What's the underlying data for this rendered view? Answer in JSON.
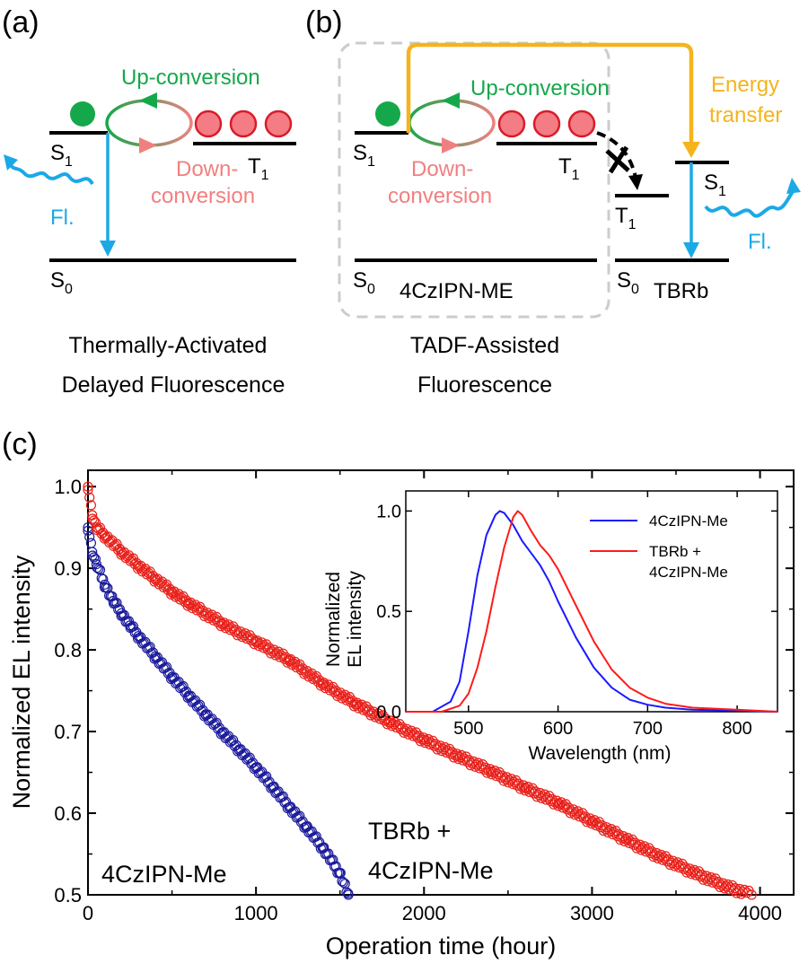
{
  "panels": {
    "a": {
      "letter": "(a)",
      "up_conversion": "Up-conversion",
      "down_line1": "Down-",
      "down_line2": "conversion",
      "fl": "Fl.",
      "caption_line1": "Thermally-Activated",
      "caption_line2": "Delayed Fluorescence"
    },
    "b": {
      "letter": "(b)",
      "up_conversion": "Up-conversion",
      "down_line1": "Down-",
      "down_line2": "conversion",
      "energy_line1": "Energy",
      "energy_line2": "transfer",
      "fl": "Fl.",
      "host_name": "4CzIPN-ME",
      "dopant_name": "TBRb",
      "caption_line1": "TADF-Assisted",
      "caption_line2": "Fluorescence"
    },
    "c": {
      "letter": "(c)"
    }
  },
  "levels": {
    "s": "S",
    "t": "T",
    "sub0": "0",
    "sub1": "1"
  },
  "colors": {
    "green": "#15a84a",
    "salmon": "#f08080",
    "triplet_fill": "#f47c84",
    "triplet_stroke": "#d91c2a",
    "blue_arrow": "#1ba9e6",
    "orange": "#f5b31c",
    "series_4czipn": "#1c1c9c",
    "series_tbrb": "#e8201a",
    "inset_blue": "#1a1aff",
    "inset_red": "#ff1a1a",
    "dashed_box": "#cccccc"
  },
  "chart_data": [
    {
      "type": "scatter",
      "xlabel": "Operation time (hour)",
      "ylabel": "Normalized EL intensity",
      "xlim": [
        0,
        4200
      ],
      "ylim": [
        0.5,
        1.02
      ],
      "xticks": [
        0,
        1000,
        2000,
        3000,
        4000
      ],
      "yticks": [
        0.5,
        0.6,
        0.7,
        0.8,
        0.9,
        1.0
      ],
      "xtick_labels": [
        "0",
        "1000",
        "2000",
        "3000",
        "4000"
      ],
      "ytick_labels": [
        "0.5",
        "0.6",
        "0.7",
        "0.8",
        "0.9",
        "1.0"
      ],
      "series": [
        {
          "name": "4CzIPN-Me",
          "color": "#1c1c9c",
          "x": [
            0,
            25,
            50,
            100,
            150,
            200,
            250,
            300,
            400,
            500,
            600,
            700,
            800,
            900,
            1000,
            1100,
            1200,
            1300,
            1400,
            1500,
            1550
          ],
          "y": [
            0.95,
            0.92,
            0.905,
            0.88,
            0.86,
            0.845,
            0.83,
            0.817,
            0.792,
            0.767,
            0.744,
            0.721,
            0.699,
            0.678,
            0.656,
            0.632,
            0.607,
            0.583,
            0.557,
            0.526,
            0.5
          ]
        },
        {
          "name": "TBRb + 4CzIPN-Me",
          "color": "#e8201a",
          "x": [
            0,
            25,
            50,
            100,
            200,
            300,
            400,
            500,
            600,
            800,
            1000,
            1200,
            1400,
            1600,
            1800,
            2000,
            2200,
            2400,
            2600,
            2800,
            3000,
            3200,
            3400,
            3600,
            3800,
            3950
          ],
          "y": [
            1.0,
            0.965,
            0.95,
            0.94,
            0.92,
            0.903,
            0.887,
            0.871,
            0.857,
            0.832,
            0.81,
            0.787,
            0.758,
            0.733,
            0.711,
            0.69,
            0.67,
            0.651,
            0.631,
            0.612,
            0.59,
            0.568,
            0.547,
            0.528,
            0.51,
            0.5
          ]
        }
      ],
      "annotations": [
        {
          "text": "4CzIPN-Me"
        },
        {
          "text_line1": "TBRb +",
          "text_line2": "4CzIPN-Me"
        }
      ]
    },
    {
      "type": "line",
      "xlabel": "Wavelength (nm)",
      "ylabel_line1": "Normalized",
      "ylabel_line2": "EL intensity",
      "xlim": [
        430,
        845
      ],
      "ylim": [
        0,
        1.1
      ],
      "xticks": [
        500,
        600,
        700,
        800
      ],
      "yticks": [
        0.0,
        0.5,
        1.0
      ],
      "xtick_labels": [
        "500",
        "600",
        "700",
        "800"
      ],
      "ytick_labels": [
        "0.0",
        "0.5",
        "1.0"
      ],
      "legend_position": "top-right",
      "series": [
        {
          "name": "4CzIPN-Me",
          "color": "#1a1aff",
          "x": [
            430,
            460,
            480,
            490,
            500,
            510,
            520,
            530,
            535,
            540,
            550,
            560,
            570,
            580,
            590,
            600,
            620,
            640,
            660,
            680,
            700,
            720,
            750,
            800,
            845
          ],
          "y": [
            0.0,
            0.0,
            0.05,
            0.15,
            0.4,
            0.68,
            0.88,
            0.98,
            1.0,
            0.99,
            0.93,
            0.85,
            0.79,
            0.73,
            0.65,
            0.55,
            0.37,
            0.22,
            0.12,
            0.06,
            0.035,
            0.02,
            0.01,
            0.005,
            0.0
          ]
        },
        {
          "name": "TBRb + 4CzIPN-Me",
          "color": "#ff1a1a",
          "x": [
            430,
            470,
            490,
            500,
            510,
            520,
            530,
            540,
            550,
            555,
            560,
            570,
            580,
            590,
            600,
            620,
            640,
            660,
            680,
            700,
            720,
            750,
            800,
            845
          ],
          "y": [
            0.0,
            0.0,
            0.03,
            0.09,
            0.22,
            0.4,
            0.62,
            0.82,
            0.97,
            1.0,
            0.98,
            0.9,
            0.83,
            0.78,
            0.71,
            0.53,
            0.35,
            0.21,
            0.12,
            0.07,
            0.04,
            0.02,
            0.01,
            0.0
          ]
        }
      ],
      "legend": [
        {
          "line1": "4CzIPN-Me"
        },
        {
          "line1": "TBRb +",
          "line2": "4CzIPN-Me"
        }
      ]
    }
  ]
}
